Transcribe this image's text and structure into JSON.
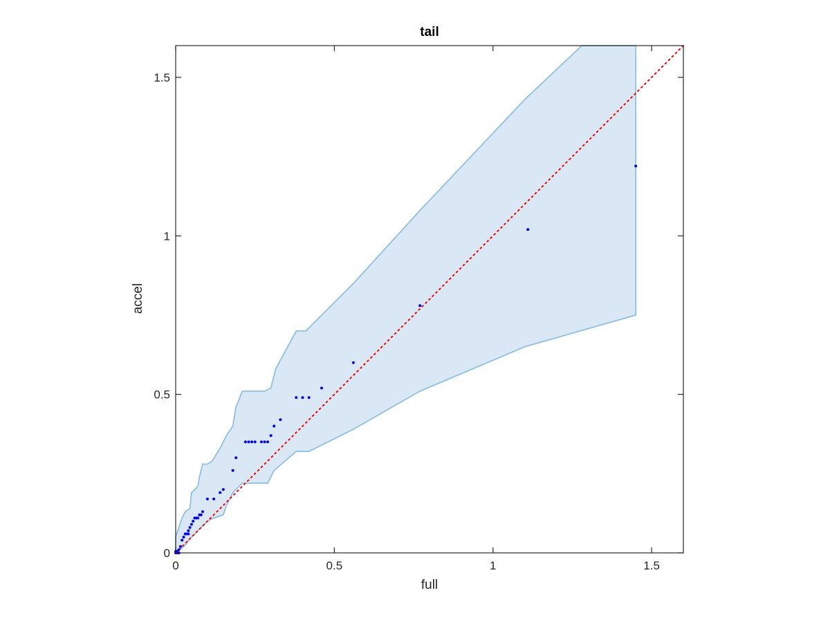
{
  "chart_data": {
    "type": "scatter",
    "title": "tail",
    "xlabel": "full",
    "ylabel": "accel",
    "xlim": [
      0,
      1.6
    ],
    "ylim": [
      0,
      1.6
    ],
    "xticks": [
      0,
      0.5,
      1,
      1.5
    ],
    "yticks": [
      0,
      0.5,
      1,
      1.5
    ],
    "xtick_labels": [
      "0",
      "0.5",
      "1",
      "1.5"
    ],
    "ytick_labels": [
      "0",
      "0.5",
      "1",
      "1.5"
    ],
    "grid": false,
    "box": true,
    "colors": {
      "points": "#0000ff",
      "band_fill": "#d9e8f4",
      "band_edge": "#8ec0e0",
      "reference_line": "#ff0000",
      "axes": "#262626"
    },
    "reference_line": {
      "style": "dotted",
      "points": [
        [
          0,
          0
        ],
        [
          1.6,
          1.6
        ]
      ]
    },
    "band": {
      "upper": [
        [
          0.0,
          0.05
        ],
        [
          0.01,
          0.08
        ],
        [
          0.02,
          0.11
        ],
        [
          0.03,
          0.13
        ],
        [
          0.045,
          0.14
        ],
        [
          0.05,
          0.19
        ],
        [
          0.06,
          0.2
        ],
        [
          0.07,
          0.21
        ],
        [
          0.075,
          0.24
        ],
        [
          0.085,
          0.28
        ],
        [
          0.1,
          0.28
        ],
        [
          0.115,
          0.29
        ],
        [
          0.14,
          0.33
        ],
        [
          0.16,
          0.37
        ],
        [
          0.18,
          0.4
        ],
        [
          0.19,
          0.46
        ],
        [
          0.21,
          0.51
        ],
        [
          0.28,
          0.51
        ],
        [
          0.3,
          0.52
        ],
        [
          0.315,
          0.58
        ],
        [
          0.38,
          0.7
        ],
        [
          0.41,
          0.7
        ],
        [
          0.56,
          0.85
        ],
        [
          0.77,
          1.08
        ],
        [
          1.1,
          1.43
        ],
        [
          1.28,
          1.6
        ],
        [
          1.45,
          1.6
        ]
      ],
      "lower": [
        [
          1.45,
          0.75
        ],
        [
          1.1,
          0.65
        ],
        [
          0.77,
          0.51
        ],
        [
          0.56,
          0.39
        ],
        [
          0.46,
          0.34
        ],
        [
          0.42,
          0.32
        ],
        [
          0.38,
          0.32
        ],
        [
          0.31,
          0.26
        ],
        [
          0.29,
          0.22
        ],
        [
          0.21,
          0.22
        ],
        [
          0.18,
          0.19
        ],
        [
          0.16,
          0.15
        ],
        [
          0.15,
          0.12
        ],
        [
          0.12,
          0.11
        ],
        [
          0.1,
          0.1
        ],
        [
          0.07,
          0.07
        ],
        [
          0.05,
          0.05
        ],
        [
          0.03,
          0.025
        ],
        [
          0.02,
          0.015
        ],
        [
          0.0,
          0.0
        ]
      ]
    },
    "points": [
      [
        0.0,
        0.0
      ],
      [
        0.005,
        0.0
      ],
      [
        0.01,
        0.0
      ],
      [
        0.0,
        0.005
      ],
      [
        0.005,
        0.005
      ],
      [
        0.01,
        0.01
      ],
      [
        0.015,
        0.02
      ],
      [
        0.02,
        0.04
      ],
      [
        0.025,
        0.05
      ],
      [
        0.03,
        0.06
      ],
      [
        0.035,
        0.06
      ],
      [
        0.04,
        0.06
      ],
      [
        0.04,
        0.07
      ],
      [
        0.045,
        0.08
      ],
      [
        0.05,
        0.09
      ],
      [
        0.055,
        0.1
      ],
      [
        0.06,
        0.11
      ],
      [
        0.065,
        0.11
      ],
      [
        0.07,
        0.11
      ],
      [
        0.075,
        0.12
      ],
      [
        0.08,
        0.12
      ],
      [
        0.085,
        0.13
      ],
      [
        0.1,
        0.17
      ],
      [
        0.12,
        0.17
      ],
      [
        0.14,
        0.19
      ],
      [
        0.15,
        0.2
      ],
      [
        0.18,
        0.26
      ],
      [
        0.19,
        0.3
      ],
      [
        0.22,
        0.35
      ],
      [
        0.23,
        0.35
      ],
      [
        0.24,
        0.35
      ],
      [
        0.25,
        0.35
      ],
      [
        0.27,
        0.35
      ],
      [
        0.28,
        0.35
      ],
      [
        0.29,
        0.35
      ],
      [
        0.3,
        0.37
      ],
      [
        0.31,
        0.4
      ],
      [
        0.33,
        0.42
      ],
      [
        0.38,
        0.49
      ],
      [
        0.4,
        0.49
      ],
      [
        0.42,
        0.49
      ],
      [
        0.46,
        0.52
      ],
      [
        0.56,
        0.6
      ],
      [
        0.77,
        0.78
      ],
      [
        1.11,
        1.02
      ],
      [
        1.45,
        1.22
      ]
    ]
  }
}
